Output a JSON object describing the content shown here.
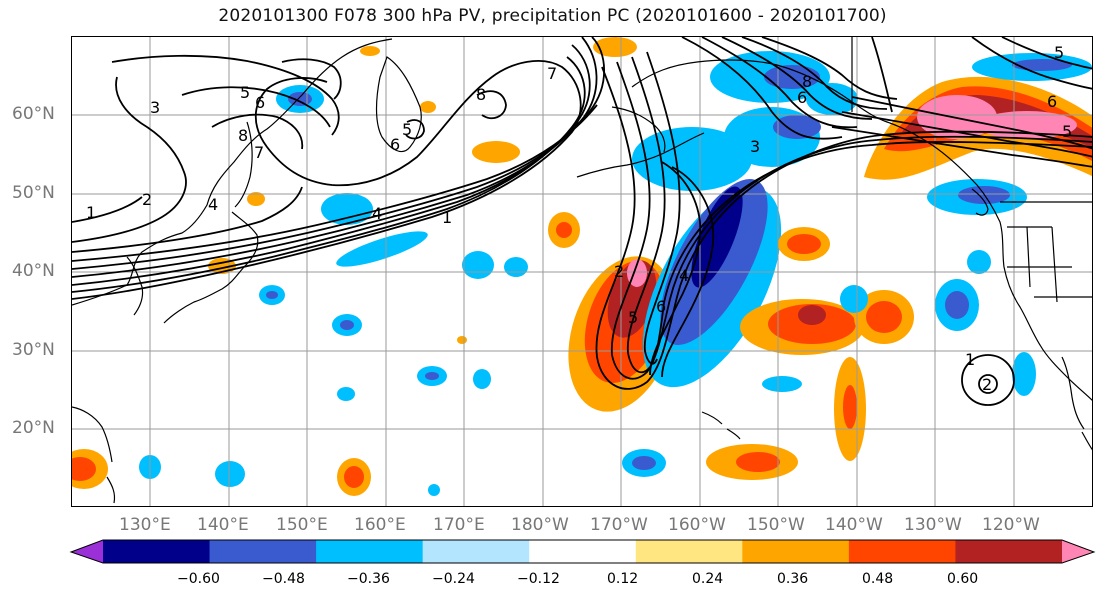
{
  "title": "2020101300 F078 300 hPa PV, precipitation PC (2020101600 - 2020101700)",
  "lat_labels": [
    "60°N",
    "50°N",
    "40°N",
    "30°N",
    "20°N"
  ],
  "lon_labels": [
    "130°E",
    "140°E",
    "150°E",
    "160°E",
    "170°E",
    "180°W",
    "170°W",
    "160°W",
    "150°W",
    "140°W",
    "130°W",
    "120°W"
  ],
  "colorbar": {
    "ticks": [
      "−0.60",
      "−0.48",
      "−0.36",
      "−0.24",
      "−0.12",
      "0.12",
      "0.24",
      "0.36",
      "0.48",
      "0.60"
    ],
    "colors": [
      "#9b30d9",
      "#00008b",
      "#3a5bd0",
      "#00bfff",
      "#b3e5ff",
      "#ffffff",
      "#ffe680",
      "#ffa500",
      "#ff4500",
      "#b22222",
      "#ff85b4"
    ]
  },
  "contour_labels": [
    "3",
    "5",
    "6",
    "8",
    "7",
    "2",
    "1",
    "4",
    "8",
    "6",
    "5",
    "4",
    "1",
    "7",
    "8",
    "6",
    "3",
    "2",
    "6",
    "5",
    "4",
    "5",
    "6",
    "5",
    "1",
    "2"
  ],
  "colors": {
    "gridline": "#9a9a9a",
    "coast": "#000000",
    "pv_contour": "#000000"
  }
}
